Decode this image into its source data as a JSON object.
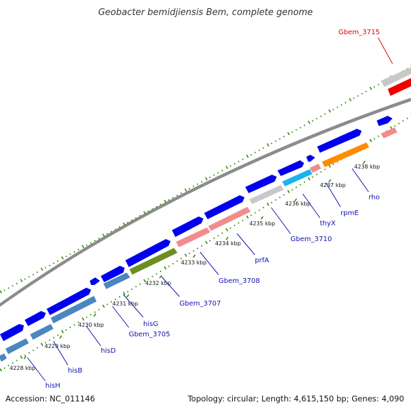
{
  "title": "Geobacter bemidjiensis Bem, complete genome",
  "footer": {
    "accession": "Accession: NC_011146",
    "topology": "Topology: circular; Length: 4,615,150 bp; Genes: 4,090"
  },
  "colors": {
    "backbone": "#8c8c8c",
    "dots": "#2e8b00",
    "label_blue": "#1010b0",
    "label_red": "#e00000",
    "blue": "#0000ee",
    "steelblue": "#4a86c0",
    "olive": "#6b8e23",
    "pink": "#f28c8c",
    "gray": "#c8c8c8",
    "cyan": "#18b4ee",
    "orange": "#ff8c00",
    "red": "#ee0000"
  },
  "kbp_ticks": [
    "4228 kbp",
    "4229 kbp",
    "4230 kbp",
    "4231 kbp",
    "4232 kbp",
    "4233 kbp",
    "4234 kbp",
    "4235 kbp",
    "4236 kbp",
    "4237 kbp",
    "4238 kbp"
  ],
  "gene_labels": [
    "hisH",
    "hisB",
    "hisD",
    "Gbem_3705",
    "hisG",
    "Gbem_3707",
    "Gbem_3708",
    "prfA",
    "Gbem_3710",
    "thyX",
    "rpmE",
    "rho",
    "Gbem_3715"
  ]
}
